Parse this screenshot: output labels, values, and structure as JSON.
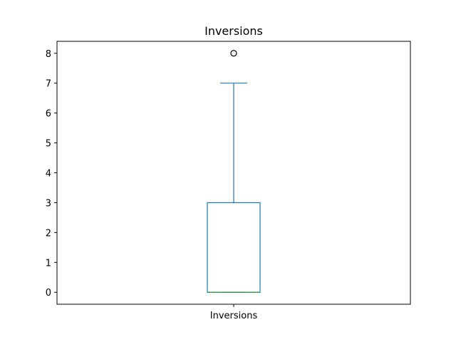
{
  "chart_data": {
    "type": "box",
    "title": "Inversions",
    "xlabel": "",
    "ylabel": "",
    "categories": [
      "Inversions"
    ],
    "boxes": [
      {
        "name": "Inversions",
        "whisker_low": 0,
        "q1": 0,
        "median": 0,
        "q3": 3,
        "whisker_high": 7,
        "outliers": [
          8
        ]
      }
    ],
    "ylim": [
      -0.4,
      8.4
    ],
    "yticks": [
      0,
      1,
      2,
      3,
      4,
      5,
      6,
      7,
      8
    ],
    "ytick_labels": [
      "0",
      "1",
      "2",
      "3",
      "4",
      "5",
      "6",
      "7",
      "8"
    ],
    "grid": false,
    "colors": {
      "box": "#1f77b4",
      "median": "#2ca02c",
      "outlier_edge": "#000000",
      "axes": "#000000"
    }
  }
}
